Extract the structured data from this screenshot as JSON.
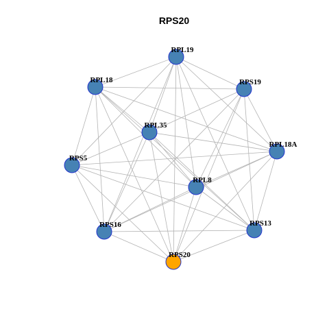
{
  "title": "RPS20",
  "colors": {
    "background": "#ffffff",
    "edge": "#b3b3b3",
    "node_default": "#4682b4",
    "node_highlight": "#ffa500",
    "node_border": "#2233cc"
  },
  "nodes": [
    {
      "id": "RPL19",
      "label": "RPL19",
      "highlight": false
    },
    {
      "id": "RPS19",
      "label": "RPS19",
      "highlight": false
    },
    {
      "id": "RPL18A",
      "label": "RPL18A",
      "highlight": false
    },
    {
      "id": "RPS13",
      "label": "RPS13",
      "highlight": false
    },
    {
      "id": "RPS20",
      "label": "RPS20",
      "highlight": true
    },
    {
      "id": "RPS16",
      "label": "RPS16",
      "highlight": false
    },
    {
      "id": "RPS5",
      "label": "RPS5",
      "highlight": false
    },
    {
      "id": "RPL18",
      "label": "RPL18",
      "highlight": false
    },
    {
      "id": "RPL35",
      "label": "RPL35",
      "highlight": false
    },
    {
      "id": "RPL8",
      "label": "RPL8",
      "highlight": false
    }
  ],
  "edges": [
    [
      "RPL19",
      "RPS19"
    ],
    [
      "RPL19",
      "RPL18A"
    ],
    [
      "RPL19",
      "RPS13"
    ],
    [
      "RPL19",
      "RPS20"
    ],
    [
      "RPL19",
      "RPS16"
    ],
    [
      "RPL19",
      "RPS5"
    ],
    [
      "RPL19",
      "RPL18"
    ],
    [
      "RPL19",
      "RPL35"
    ],
    [
      "RPL19",
      "RPL8"
    ],
    [
      "RPS19",
      "RPL18A"
    ],
    [
      "RPS19",
      "RPS13"
    ],
    [
      "RPS19",
      "RPS20"
    ],
    [
      "RPS19",
      "RPS16"
    ],
    [
      "RPS19",
      "RPL18"
    ],
    [
      "RPS19",
      "RPL35"
    ],
    [
      "RPS19",
      "RPL8"
    ],
    [
      "RPL18A",
      "RPS13"
    ],
    [
      "RPL18A",
      "RPS20"
    ],
    [
      "RPL18A",
      "RPS16"
    ],
    [
      "RPL18A",
      "RPS5"
    ],
    [
      "RPL18A",
      "RPL18"
    ],
    [
      "RPL18A",
      "RPL35"
    ],
    [
      "RPL18A",
      "RPL8"
    ],
    [
      "RPS13",
      "RPS20"
    ],
    [
      "RPS13",
      "RPS16"
    ],
    [
      "RPS13",
      "RPS5"
    ],
    [
      "RPS13",
      "RPL18"
    ],
    [
      "RPS13",
      "RPL35"
    ],
    [
      "RPS13",
      "RPL8"
    ],
    [
      "RPS20",
      "RPS16"
    ],
    [
      "RPS20",
      "RPS5"
    ],
    [
      "RPS20",
      "RPL18"
    ],
    [
      "RPS20",
      "RPL35"
    ],
    [
      "RPS20",
      "RPL8"
    ],
    [
      "RPS16",
      "RPS5"
    ],
    [
      "RPS16",
      "RPL18"
    ],
    [
      "RPS16",
      "RPL35"
    ],
    [
      "RPS16",
      "RPL8"
    ],
    [
      "RPS5",
      "RPL35"
    ],
    [
      "RPS5",
      "RPL8"
    ],
    [
      "RPS5",
      "RPL18"
    ],
    [
      "RPL18",
      "RPL35"
    ],
    [
      "RPL18",
      "RPL8"
    ],
    [
      "RPL35",
      "RPL8"
    ]
  ]
}
